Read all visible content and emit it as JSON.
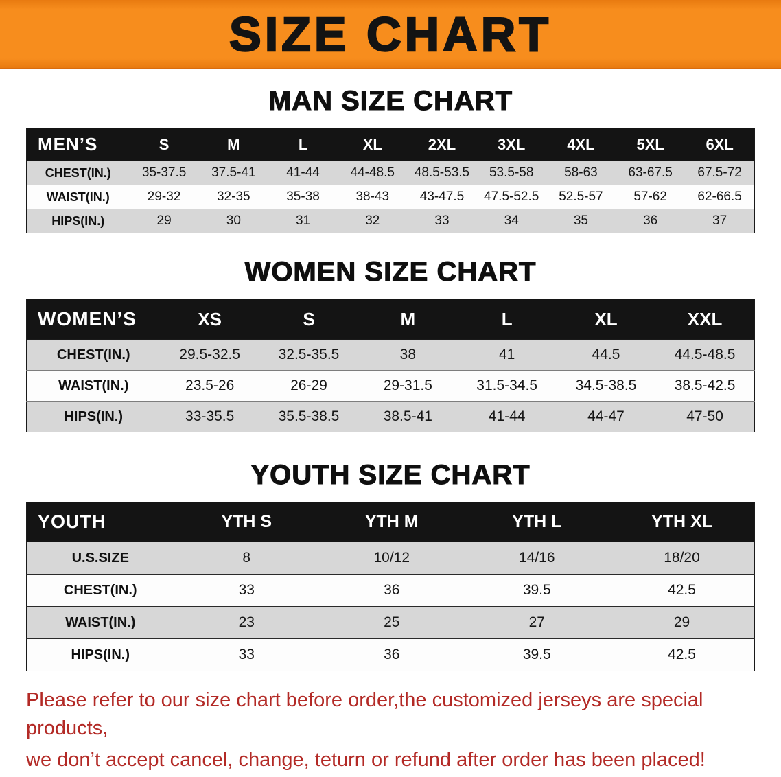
{
  "banner": {
    "title": "SIZE CHART"
  },
  "colors": {
    "banner_bg": "#f78d1d",
    "banner_edge": "#e87a10",
    "header_bg": "#141414",
    "row_alt": "#d7d7d7",
    "note_color": "#b32a26"
  },
  "men": {
    "heading": "MAN SIZE CHART",
    "header": [
      "MEN’S",
      "S",
      "M",
      "L",
      "XL",
      "2XL",
      "3XL",
      "4XL",
      "5XL",
      "6XL"
    ],
    "rows": [
      {
        "label": "CHEST(IN.)",
        "values": [
          "35-37.5",
          "37.5-41",
          "41-44",
          "44-48.5",
          "48.5-53.5",
          "53.5-58",
          "58-63",
          "63-67.5",
          "67.5-72"
        ]
      },
      {
        "label": "WAIST(IN.)",
        "values": [
          "29-32",
          "32-35",
          "35-38",
          "38-43",
          "43-47.5",
          "47.5-52.5",
          "52.5-57",
          "57-62",
          "62-66.5"
        ]
      },
      {
        "label": "HIPS(IN.)",
        "values": [
          "29",
          "30",
          "31",
          "32",
          "33",
          "34",
          "35",
          "36",
          "37"
        ]
      }
    ]
  },
  "women": {
    "heading": "WOMEN SIZE CHART",
    "header": [
      "WOMEN’S",
      "XS",
      "S",
      "M",
      "L",
      "XL",
      "XXL"
    ],
    "rows": [
      {
        "label": "CHEST(IN.)",
        "values": [
          "29.5-32.5",
          "32.5-35.5",
          "38",
          "41",
          "44.5",
          "44.5-48.5"
        ]
      },
      {
        "label": "WAIST(IN.)",
        "values": [
          "23.5-26",
          "26-29",
          "29-31.5",
          "31.5-34.5",
          "34.5-38.5",
          "38.5-42.5"
        ]
      },
      {
        "label": "HIPS(IN.)",
        "values": [
          "33-35.5",
          "35.5-38.5",
          "38.5-41",
          "41-44",
          "44-47",
          "47-50"
        ]
      }
    ]
  },
  "youth": {
    "heading": "YOUTH SIZE CHART",
    "header": [
      "YOUTH",
      "YTH S",
      "YTH M",
      "YTH L",
      "YTH XL"
    ],
    "rows": [
      {
        "label": "U.S.SIZE",
        "values": [
          "8",
          "10/12",
          "14/16",
          "18/20"
        ]
      },
      {
        "label": "CHEST(IN.)",
        "values": [
          "33",
          "36",
          "39.5",
          "42.5"
        ]
      },
      {
        "label": "WAIST(IN.)",
        "values": [
          "23",
          "25",
          "27",
          "29"
        ]
      },
      {
        "label": "HIPS(IN.)",
        "values": [
          "33",
          "36",
          "39.5",
          "42.5"
        ]
      }
    ]
  },
  "note": {
    "line1": "Please refer to our size chart before order,the customized jerseys are special products,",
    "line2": "we don’t accept cancel, change, teturn or refund after order has been placed!"
  }
}
